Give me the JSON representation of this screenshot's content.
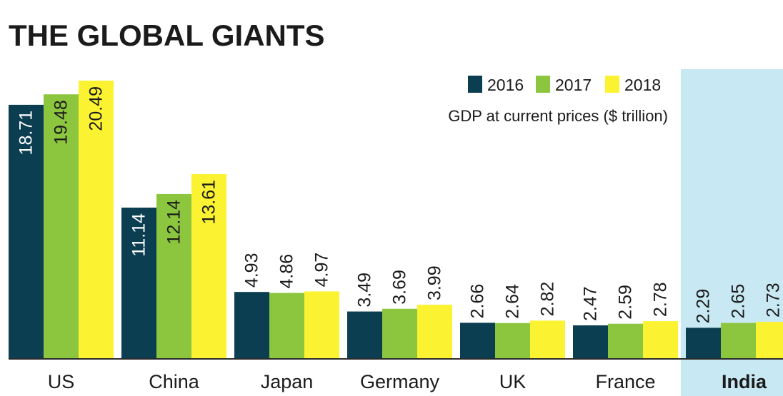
{
  "chart_data": {
    "type": "bar",
    "title": "THE GLOBAL GIANTS",
    "subtitle": "GDP at current prices ($ trillion)",
    "categories": [
      "US",
      "China",
      "Japan",
      "Germany",
      "UK",
      "France",
      "India"
    ],
    "highlighted_category": "India",
    "series": [
      {
        "name": "2016",
        "color": "#0c3e52",
        "values": [
          18.71,
          11.14,
          4.93,
          3.49,
          2.66,
          2.47,
          2.29
        ]
      },
      {
        "name": "2017",
        "color": "#8cc63f",
        "values": [
          19.48,
          12.14,
          4.86,
          3.69,
          2.64,
          2.59,
          2.65
        ]
      },
      {
        "name": "2018",
        "color": "#fbf331",
        "values": [
          20.49,
          13.61,
          4.97,
          3.99,
          2.82,
          2.78,
          2.73
        ]
      }
    ],
    "value_labels": {
      "US": [
        "18.71",
        "19.48",
        "20.49"
      ],
      "China": [
        "11.14",
        "12.14",
        "13.61"
      ],
      "Japan": [
        "4.93",
        "4.86",
        "4.97"
      ],
      "Germany": [
        "3.49",
        "3.69",
        "3.99"
      ],
      "UK": [
        "2.66",
        "2.64",
        "2.82"
      ],
      "France": [
        "2.47",
        "2.59",
        "2.78"
      ],
      "India": [
        "2.29",
        "2.65",
        "2.73"
      ]
    },
    "ylim": [
      0,
      20.49
    ],
    "grid": false,
    "legend_position": "top-right",
    "highlight_color": "#c8e9f3",
    "xlabel": "",
    "ylabel": ""
  }
}
